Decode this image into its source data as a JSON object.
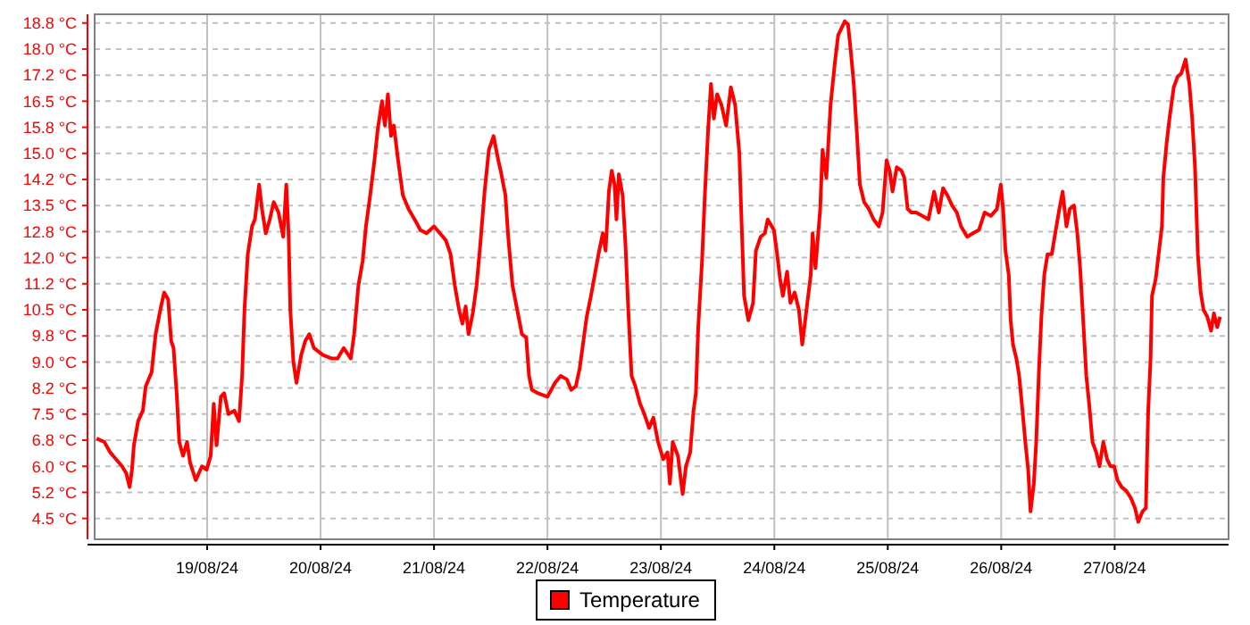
{
  "chart_data": {
    "type": "line",
    "x": [
      "--08-18T00:36",
      "--08-18T02:15",
      "--08-18T03:30",
      "--08-18T04:45",
      "--08-18T06:00",
      "--08-18T06:53",
      "--08-18T07:36",
      "--08-18T08:06",
      "--08-18T08:30",
      "--08-18T09:24",
      "--08-18T10:24",
      "--08-18T11:00",
      "--08-18T12:15",
      "--08-18T13:06",
      "--08-18T14:06",
      "--08-18T14:54",
      "--08-18T15:45",
      "--08-18T16:24",
      "--08-18T16:54",
      "--08-18T17:36",
      "--08-18T18:06",
      "--08-18T18:54",
      "--08-18T19:45",
      "--08-18T20:24",
      "--08-18T21:36",
      "--08-18T22:54",
      "--08-18T23:54",
      "--08-19T00:45",
      "--08-19T01:24",
      "--08-19T02:00",
      "--08-19T02:54",
      "--08-19T03:36",
      "--08-19T04:30",
      "--08-19T05:45",
      "--08-19T06:45",
      "--08-19T07:24",
      "--08-19T07:54",
      "--08-19T08:36",
      "--08-19T09:30",
      "--08-19T10:06",
      "--08-19T11:00",
      "--08-19T11:36",
      "--08-19T12:24",
      "--08-19T13:15",
      "--08-19T14:06",
      "--08-19T15:06",
      "--08-19T16:06",
      "--08-19T16:45",
      "--08-19T17:15",
      "--08-19T17:36",
      "--08-19T18:15",
      "--08-19T18:54",
      "--08-19T19:54",
      "--08-19T20:45",
      "--08-19T21:36",
      "--08-19T22:36",
      "--08-20T00:30",
      "--08-20T02:24",
      "--08-20T03:36",
      "--08-20T04:54",
      "--08-20T06:24",
      "--08-20T07:06",
      "--08-20T08:00",
      "--08-20T08:54",
      "--08-20T09:36",
      "--08-20T10:30",
      "--08-20T11:24",
      "--08-20T12:06",
      "--08-20T13:00",
      "--08-20T13:36",
      "--08-20T14:15",
      "--08-20T14:54",
      "--08-20T15:30",
      "--08-20T16:24",
      "--08-20T17:24",
      "--08-20T18:36",
      "--08-20T19:54",
      "--08-20T21:06",
      "--08-20T22:24",
      "--08-21T00:00",
      "--08-21T01:15",
      "--08-21T02:30",
      "--08-21T03:30",
      "--08-21T04:24",
      "--08-21T05:18",
      "--08-21T06:00",
      "--08-21T06:42",
      "--08-21T07:18",
      "--08-21T08:12",
      "--08-21T09:00",
      "--08-21T09:48",
      "--08-21T10:42",
      "--08-21T11:36",
      "--08-21T12:36",
      "--08-21T13:36",
      "--08-21T14:06",
      "--08-21T15:06",
      "--08-21T15:42",
      "--08-21T16:36",
      "--08-21T17:36",
      "--08-21T18:36",
      "--08-21T19:30",
      "--08-21T20:06",
      "--08-21T20:42",
      "--08-21T22:00",
      "--08-22T00:00",
      "--08-22T01:36",
      "--08-22T02:48",
      "--08-22T04:06",
      "--08-22T05:00",
      "--08-22T06:00",
      "--08-22T06:48",
      "--08-22T07:30",
      "--08-22T08:18",
      "--08-22T09:12",
      "--08-22T10:00",
      "--08-22T10:48",
      "--08-22T11:42",
      "--08-22T12:18",
      "--08-22T13:00",
      "--08-22T13:36",
      "--08-22T14:12",
      "--08-22T14:36",
      "--08-22T15:06",
      "--08-22T15:54",
      "--08-22T16:30",
      "--08-22T17:06",
      "--08-22T17:48",
      "--08-22T18:36",
      "--08-22T19:36",
      "--08-22T20:30",
      "--08-22T21:30",
      "--08-22T22:24",
      "--08-22T23:24",
      "--08-23T00:30",
      "--08-23T01:24",
      "--08-23T01:54",
      "--08-23T02:30",
      "--08-23T03:36",
      "--08-23T04:36",
      "--08-23T05:18",
      "--08-23T06:12",
      "--08-23T06:54",
      "--08-23T07:24",
      "--08-23T07:54",
      "--08-23T08:42",
      "--08-23T09:18",
      "--08-23T10:00",
      "--08-23T10:36",
      "--08-23T11:12",
      "--08-23T11:54",
      "--08-23T12:48",
      "--08-23T13:48",
      "--08-23T14:48",
      "--08-23T15:42",
      "--08-23T16:36",
      "--08-23T17:00",
      "--08-23T17:36",
      "--08-23T18:30",
      "--08-23T19:30",
      "--08-23T20:06",
      "--08-23T21:06",
      "--08-23T22:00",
      "--08-23T22:36",
      "--08-23T23:54",
      "--08-24T00:30",
      "--08-24T01:12",
      "--08-24T01:48",
      "--08-24T02:42",
      "--08-24T03:24",
      "--08-24T04:18",
      "--08-24T05:12",
      "--08-24T05:54",
      "--08-24T06:48",
      "--08-24T07:42",
      "--08-24T08:06",
      "--08-24T08:42",
      "--08-24T09:42",
      "--08-24T10:12",
      "--08-24T11:00",
      "--08-24T11:54",
      "--08-24T12:48",
      "--08-24T13:30",
      "--08-24T14:54",
      "--08-24T15:36",
      "--08-24T16:12",
      "--08-24T16:48",
      "--08-24T17:30",
      "--08-24T18:06",
      "--08-24T19:00",
      "--08-24T20:00",
      "--08-24T21:00",
      "--08-24T22:06",
      "--08-24T22:54",
      "--08-24T23:45",
      "--08-25T00:24",
      "--08-25T01:00",
      "--08-25T01:54",
      "--08-25T02:54",
      "--08-25T03:30",
      "--08-25T04:12",
      "--08-25T05:00",
      "--08-25T06:00",
      "--08-25T07:18",
      "--08-25T08:36",
      "--08-25T09:48",
      "--08-25T10:48",
      "--08-25T11:42",
      "--08-25T12:36",
      "--08-25T13:36",
      "--08-25T14:36",
      "--08-25T15:30",
      "--08-25T16:48",
      "--08-25T18:00",
      "--08-25T19:18",
      "--08-25T20:30",
      "--08-25T21:48",
      "--08-25T23:06",
      "--08-25T23:54",
      "--08-26T00:24",
      "--08-26T00:54",
      "--08-26T01:36",
      "--08-26T02:00",
      "--08-26T02:30",
      "--08-26T03:12",
      "--08-26T03:48",
      "--08-26T04:30",
      "--08-26T05:06",
      "--08-26T05:42",
      "--08-26T06:12",
      "--08-26T06:54",
      "--08-26T07:24",
      "--08-26T08:00",
      "--08-26T08:30",
      "--08-26T09:06",
      "--08-26T09:48",
      "--08-26T10:42",
      "--08-26T11:18",
      "--08-26T12:18",
      "--08-26T13:00",
      "--08-26T13:48",
      "--08-26T14:30",
      "--08-26T15:24",
      "--08-26T16:06",
      "--08-26T16:42",
      "--08-26T17:18",
      "--08-26T18:00",
      "--08-26T18:36",
      "--08-26T19:18",
      "--08-26T20:06",
      "--08-26T20:48",
      "--08-26T21:36",
      "--08-26T22:24",
      "--08-26T23:06",
      "--08-26T23:54",
      "--08-27T00:36",
      "--08-27T01:30",
      "--08-27T02:24",
      "--08-27T03:24",
      "--08-27T04:18",
      "--08-27T05:00",
      "--08-27T05:54",
      "--08-27T06:36",
      "--08-27T07:06",
      "--08-27T07:36",
      "--08-27T07:54",
      "--08-27T08:42",
      "--08-27T09:18",
      "--08-27T10:00",
      "--08-27T10:18",
      "--08-27T11:00",
      "--08-27T11:36",
      "--08-27T12:30",
      "--08-27T13:18",
      "--08-27T14:06",
      "--08-27T15:00",
      "--08-27T15:48",
      "--08-27T16:24",
      "--08-27T17:00",
      "--08-27T17:36",
      "--08-27T18:12",
      "--08-27T18:48",
      "--08-27T19:36",
      "--08-27T20:24",
      "--08-27T21:00",
      "--08-27T21:42",
      "--08-27T22:18"
    ],
    "series": [
      {
        "name": "Temperature",
        "color": "#ff0000",
        "values": [
          6.8,
          6.7,
          6.4,
          6.2,
          6.0,
          5.8,
          5.4,
          5.9,
          6.6,
          7.3,
          7.6,
          8.3,
          8.7,
          9.8,
          10.5,
          11.0,
          10.8,
          9.6,
          9.4,
          8.0,
          6.7,
          6.3,
          6.7,
          6.1,
          5.6,
          6.0,
          5.9,
          6.3,
          7.8,
          6.6,
          8.0,
          8.1,
          7.5,
          7.6,
          7.3,
          8.6,
          10.5,
          12.1,
          12.9,
          13.1,
          14.1,
          13.4,
          12.7,
          13.1,
          13.6,
          13.3,
          12.6,
          14.1,
          12.6,
          10.5,
          9.0,
          8.4,
          9.2,
          9.6,
          9.8,
          9.4,
          9.2,
          9.1,
          9.1,
          9.4,
          9.1,
          9.8,
          11.2,
          11.9,
          12.9,
          13.8,
          14.8,
          15.7,
          16.5,
          15.8,
          16.7,
          15.5,
          15.8,
          14.8,
          13.8,
          13.4,
          13.1,
          12.8,
          12.7,
          12.9,
          12.7,
          12.5,
          12.1,
          11.2,
          10.5,
          10.1,
          10.6,
          9.8,
          10.4,
          11.2,
          12.4,
          13.9,
          15.1,
          15.5,
          14.8,
          14.5,
          13.8,
          12.6,
          11.2,
          10.5,
          9.8,
          9.7,
          8.6,
          8.2,
          8.1,
          8.0,
          8.4,
          8.6,
          8.5,
          8.2,
          8.3,
          8.8,
          9.5,
          10.3,
          10.9,
          11.5,
          12.1,
          12.7,
          12.2,
          13.9,
          14.5,
          14.1,
          13.1,
          14.4,
          13.8,
          12.4,
          10.5,
          8.6,
          8.3,
          7.8,
          7.5,
          7.1,
          7.4,
          6.7,
          6.2,
          6.4,
          5.5,
          6.7,
          6.3,
          5.2,
          6.0,
          6.4,
          7.6,
          8.1,
          10.0,
          11.9,
          13.8,
          15.7,
          17.0,
          16.0,
          16.7,
          16.4,
          15.8,
          16.9,
          16.4,
          15.0,
          13.3,
          10.9,
          10.2,
          10.7,
          12.2,
          12.6,
          12.7,
          13.1,
          12.8,
          12.2,
          11.4,
          10.9,
          11.6,
          10.7,
          11.0,
          10.5,
          9.5,
          10.5,
          11.5,
          12.7,
          11.7,
          13.4,
          15.1,
          14.3,
          16.4,
          17.6,
          18.4,
          18.8,
          18.7,
          17.9,
          17.0,
          15.5,
          14.1,
          13.6,
          13.4,
          13.1,
          12.9,
          13.3,
          14.8,
          14.5,
          13.9,
          14.6,
          14.5,
          14.3,
          13.4,
          13.3,
          13.3,
          13.2,
          13.1,
          13.9,
          13.3,
          14.0,
          13.8,
          13.5,
          13.3,
          12.9,
          12.6,
          12.7,
          12.8,
          13.3,
          13.2,
          13.4,
          14.1,
          13.4,
          12.2,
          11.5,
          10.2,
          9.5,
          9.1,
          8.6,
          7.6,
          6.7,
          5.9,
          4.7,
          5.5,
          6.7,
          8.8,
          10.3,
          11.5,
          12.1,
          12.1,
          12.6,
          13.4,
          13.9,
          12.9,
          13.4,
          13.5,
          12.7,
          11.7,
          10.3,
          8.6,
          7.8,
          6.7,
          6.4,
          6.0,
          6.7,
          6.2,
          6.0,
          6.0,
          5.6,
          5.4,
          5.3,
          5.1,
          4.8,
          4.4,
          4.7,
          4.8,
          7.6,
          9.1,
          10.9,
          11.4,
          12.1,
          12.9,
          14.3,
          15.3,
          16.0,
          16.9,
          17.2,
          17.3,
          17.7,
          17.0,
          16.0,
          14.6,
          12.1,
          11.0,
          10.5,
          10.3,
          9.9,
          10.4,
          10.0,
          10.3
        ]
      }
    ],
    "xlim": [
      "--08-18T00:12",
      "--08-28T00:06"
    ],
    "xticks": [
      {
        "value": "--08-19",
        "label": "19/08/24"
      },
      {
        "value": "--08-20",
        "label": "20/08/24"
      },
      {
        "value": "--08-21",
        "label": "21/08/24"
      },
      {
        "value": "--08-22",
        "label": "22/08/24"
      },
      {
        "value": "--08-23",
        "label": "23/08/24"
      },
      {
        "value": "--08-24",
        "label": "24/08/24"
      },
      {
        "value": "--08-25",
        "label": "25/08/24"
      },
      {
        "value": "--08-26",
        "label": "26/08/24"
      },
      {
        "value": "--08-27",
        "label": "27/08/24"
      }
    ],
    "ylim": [
      3.9,
      19.0
    ],
    "yticks": [
      {
        "value": 4.5,
        "label": "4.5 °C"
      },
      {
        "value": 5.25,
        "label": "5.2 °C"
      },
      {
        "value": 6.0,
        "label": "6.0 °C"
      },
      {
        "value": 6.75,
        "label": "6.8 °C"
      },
      {
        "value": 7.5,
        "label": "7.5 °C"
      },
      {
        "value": 8.25,
        "label": "8.2 °C"
      },
      {
        "value": 9.0,
        "label": "9.0 °C"
      },
      {
        "value": 9.75,
        "label": "9.8 °C"
      },
      {
        "value": 10.5,
        "label": "10.5 °C"
      },
      {
        "value": 11.25,
        "label": "11.2 °C"
      },
      {
        "value": 12.0,
        "label": "12.0 °C"
      },
      {
        "value": 12.75,
        "label": "12.8 °C"
      },
      {
        "value": 13.5,
        "label": "13.5 °C"
      },
      {
        "value": 14.25,
        "label": "14.2 °C"
      },
      {
        "value": 15.0,
        "label": "15.0 °C"
      },
      {
        "value": 15.75,
        "label": "15.8 °C"
      },
      {
        "value": 16.5,
        "label": "16.5 °C"
      },
      {
        "value": 17.25,
        "label": "17.2 °C"
      },
      {
        "value": 18.0,
        "label": "18.0 °C"
      },
      {
        "value": 18.75,
        "label": "18.8 °C"
      }
    ],
    "grid": true,
    "legend": "bottom"
  }
}
